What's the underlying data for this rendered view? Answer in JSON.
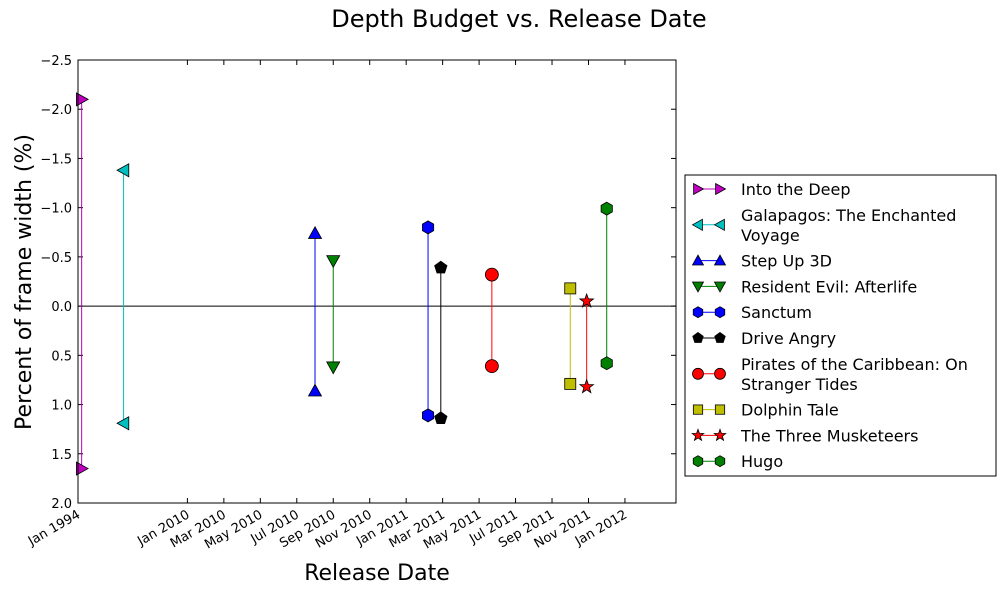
{
  "chart_data": {
    "type": "scatter",
    "title": "Depth Budget vs. Release Date",
    "xlabel": "Release Date",
    "ylabel": "Percent of frame width (%)",
    "ylim": [
      2.0,
      -2.5
    ],
    "y_axis_inverted": true,
    "grid": false,
    "zero_line": true,
    "legend_position": "right, outside plot",
    "x_tick_labels": [
      "Jan 1994",
      "Jan 2010",
      "Mar 2010",
      "May 2010",
      "Jul 2010",
      "Sep 2010",
      "Nov 2010",
      "Jan 2011",
      "Mar 2011",
      "May 2011",
      "Jul 2011",
      "Sep 2011",
      "Nov 2011",
      "Jan 2012"
    ],
    "x_tick_slots": [
      0,
      3,
      4,
      5,
      6,
      7,
      8,
      9,
      10,
      11,
      12,
      13,
      14,
      15
    ],
    "x_slot_range": [
      0,
      16.4
    ],
    "y_tick_labels": [
      "−2.5",
      "−2.0",
      "−1.5",
      "−1.0",
      "−0.5",
      "0.0",
      "0.5",
      "1.0",
      "1.5",
      "2.0"
    ],
    "y_tick_values": [
      -2.5,
      -2.0,
      -1.5,
      -1.0,
      -0.5,
      0.0,
      0.5,
      1.0,
      1.5,
      2.0
    ],
    "series": [
      {
        "name": "Into the Deep",
        "date": "1994-01",
        "slot": 0.1,
        "values": [
          -2.1,
          1.65
        ],
        "marker": "triangle-right",
        "color": "#bf00bf"
      },
      {
        "name": "Galapagos: The Enchanted Voyage",
        "date": "1999",
        "slot": 1.25,
        "values": [
          -1.38,
          1.19
        ],
        "marker": "triangle-left",
        "color": "#00bfbf"
      },
      {
        "name": "Step Up 3D",
        "date": "2010-08",
        "slot": 6.5,
        "values": [
          -0.74,
          0.86
        ],
        "marker": "triangle-up",
        "color": "#0000ff"
      },
      {
        "name": "Resident Evil: Afterlife",
        "date": "2010-09",
        "slot": 7.0,
        "values": [
          -0.46,
          0.62
        ],
        "marker": "triangle-down",
        "color": "#008000"
      },
      {
        "name": "Sanctum",
        "date": "2011-02",
        "slot": 9.6,
        "values": [
          -0.8,
          1.11
        ],
        "marker": "hexagon",
        "color": "#0000ff"
      },
      {
        "name": "Drive Angry",
        "date": "2011-02",
        "slot": 9.95,
        "values": [
          -0.39,
          1.14
        ],
        "marker": "pentagon",
        "color": "#000000"
      },
      {
        "name": "Pirates of the Caribbean: On Stranger Tides",
        "date": "2011-05",
        "slot": 11.35,
        "values": [
          -0.32,
          0.61
        ],
        "marker": "circle",
        "color": "#ff0000"
      },
      {
        "name": "Dolphin Tale",
        "date": "2011-09",
        "slot": 13.5,
        "values": [
          -0.18,
          0.79
        ],
        "marker": "square",
        "color": "#bfbf00"
      },
      {
        "name": "The Three Musketeers",
        "date": "2011-10",
        "slot": 13.95,
        "values": [
          -0.05,
          0.82
        ],
        "marker": "star",
        "color": "#ff0000"
      },
      {
        "name": "Hugo",
        "date": "2011-11",
        "slot": 14.5,
        "values": [
          -0.99,
          0.58
        ],
        "marker": "hexagon",
        "color": "#008000"
      }
    ]
  }
}
